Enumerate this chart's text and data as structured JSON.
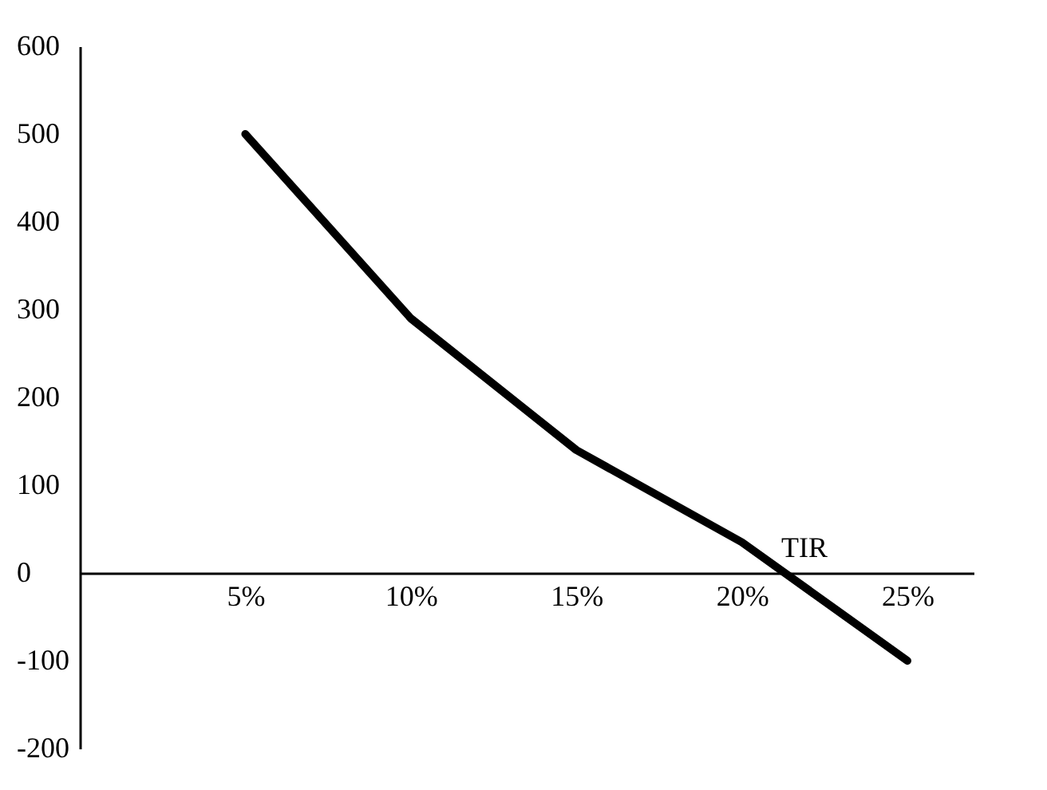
{
  "chart_data": {
    "type": "line",
    "x": [
      5,
      10,
      15,
      20,
      25
    ],
    "series": [
      {
        "color": "#000000",
        "values": [
          500,
          290,
          140,
          35,
          -100
        ]
      }
    ],
    "xlim": [
      0,
      27
    ],
    "xticks": [
      {
        "value": 5,
        "label": "5%"
      },
      {
        "value": 10,
        "label": "10%"
      },
      {
        "value": 15,
        "label": "15%"
      },
      {
        "value": 20,
        "label": "20%"
      },
      {
        "value": 25,
        "label": "25%"
      }
    ],
    "ylim": [
      -200,
      600
    ],
    "yticks": [
      -200,
      -100,
      0,
      100,
      200,
      300,
      400,
      500,
      600
    ],
    "annotations": [
      {
        "text": "TIR",
        "x": 21,
        "y": 0
      }
    ],
    "grid": false,
    "marker": "none",
    "line_style": "solid"
  }
}
